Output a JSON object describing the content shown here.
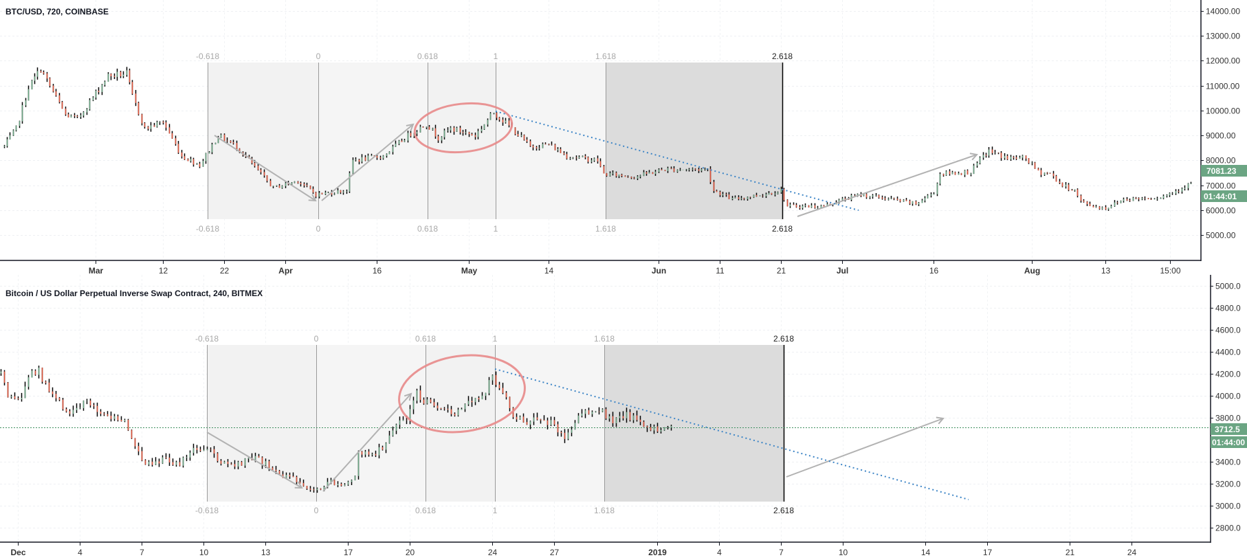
{
  "colors": {
    "up": "#6ba583",
    "down": "#e0553c",
    "wick": "#000000",
    "price_tag": "#6ba583",
    "trendline": "#3d85c6",
    "circle": "#e88a8a",
    "arrow": "#b2b2b2"
  },
  "fib_levels": [
    "-0.618",
    "0",
    "0.618",
    "1",
    "1.618",
    "2.618"
  ],
  "chart_data": [
    {
      "type": "bar",
      "title": "BTC/USD, 720, COINBASE",
      "interval_hours": 12,
      "ylim": [
        4000,
        14500
      ],
      "y_ticks": [
        "14000.00",
        "13000.00",
        "12000.00",
        "11000.00",
        "10000.00",
        "9000.00",
        "8000.00",
        "7000.00",
        "6000.00",
        "5000.00"
      ],
      "x_ticks": [
        {
          "label": "Mar",
          "date": "2018-03-01",
          "major": true
        },
        {
          "label": "12",
          "date": "2018-03-12"
        },
        {
          "label": "22",
          "date": "2018-03-22"
        },
        {
          "label": "Apr",
          "date": "2018-04-01",
          "major": true
        },
        {
          "label": "16",
          "date": "2018-04-16"
        },
        {
          "label": "May",
          "date": "2018-05-01",
          "major": true
        },
        {
          "label": "14",
          "date": "2018-05-14"
        },
        {
          "label": "Jun",
          "date": "2018-06-01",
          "major": true
        },
        {
          "label": "11",
          "date": "2018-06-11"
        },
        {
          "label": "21",
          "date": "2018-06-21"
        },
        {
          "label": "Jul",
          "date": "2018-07-01",
          "major": true
        },
        {
          "label": "16",
          "date": "2018-07-16"
        },
        {
          "label": "Aug",
          "date": "2018-08-01",
          "major": true
        },
        {
          "label": "13",
          "date": "2018-08-13"
        },
        {
          "label": "15:00",
          "date": "2018-08-23T15:00"
        }
      ],
      "last_price": "7081.23",
      "countdown": "01:44:01",
      "price_path": [
        [
          "2018-02-14",
          8560
        ],
        [
          "2018-02-16",
          9280
        ],
        [
          "2018-02-18",
          10940
        ],
        [
          "2018-02-20",
          11680
        ],
        [
          "2018-02-24",
          9830
        ],
        [
          "2018-02-26",
          9660
        ],
        [
          "2018-03-03",
          11400
        ],
        [
          "2018-03-06",
          11490
        ],
        [
          "2018-03-07",
          10580
        ],
        [
          "2018-03-09",
          9280
        ],
        [
          "2018-03-12",
          9560
        ],
        [
          "2018-03-15",
          8180
        ],
        [
          "2018-03-18",
          7820
        ],
        [
          "2018-03-21",
          9000
        ],
        [
          "2018-03-24",
          8560
        ],
        [
          "2018-03-30",
          6900
        ],
        [
          "2018-04-03",
          7180
        ],
        [
          "2018-04-06",
          6630
        ],
        [
          "2018-04-11",
          6800
        ],
        [
          "2018-04-12",
          8000
        ],
        [
          "2018-04-17",
          8180
        ],
        [
          "2018-04-21",
          9000
        ],
        [
          "2018-04-24",
          9470
        ],
        [
          "2018-04-26",
          8920
        ],
        [
          "2018-04-28",
          9280
        ],
        [
          "2018-05-02",
          9000
        ],
        [
          "2018-05-05",
          9940
        ],
        [
          "2018-05-08",
          9280
        ],
        [
          "2018-05-11",
          8560
        ],
        [
          "2018-05-14",
          8640
        ],
        [
          "2018-05-17",
          8180
        ],
        [
          "2018-05-22",
          8000
        ],
        [
          "2018-05-23",
          7460
        ],
        [
          "2018-05-28",
          7350
        ],
        [
          "2018-06-02",
          7640
        ],
        [
          "2018-06-09",
          7640
        ],
        [
          "2018-06-10",
          6800
        ],
        [
          "2018-06-13",
          6440
        ],
        [
          "2018-06-18",
          6630
        ],
        [
          "2018-06-21",
          6800
        ],
        [
          "2018-06-22",
          6160
        ],
        [
          "2018-06-26",
          6160
        ],
        [
          "2018-06-28",
          6160
        ],
        [
          "2018-06-30",
          6350
        ],
        [
          "2018-07-04",
          6630
        ],
        [
          "2018-07-09",
          6440
        ],
        [
          "2018-07-13",
          6250
        ],
        [
          "2018-07-16",
          6720
        ],
        [
          "2018-07-17",
          7460
        ],
        [
          "2018-07-22",
          7540
        ],
        [
          "2018-07-24",
          8180
        ],
        [
          "2018-07-25",
          8370
        ],
        [
          "2018-07-28",
          8090
        ],
        [
          "2018-07-31",
          8090
        ],
        [
          "2018-08-02",
          7540
        ],
        [
          "2018-08-04",
          7460
        ],
        [
          "2018-08-06",
          6990
        ],
        [
          "2018-08-08",
          6800
        ],
        [
          "2018-08-09",
          6350
        ],
        [
          "2018-08-11",
          6160
        ],
        [
          "2018-08-13",
          6080
        ],
        [
          "2018-08-16",
          6440
        ],
        [
          "2018-08-22",
          6520
        ],
        [
          "2018-08-24",
          6720
        ],
        [
          "2018-08-27",
          7081.23
        ]
      ]
    },
    {
      "type": "bar",
      "title": "Bitcoin / US Dollar Perpetual Inverse Swap Contract, 240, BITMEX",
      "interval_hours": 4,
      "ylim": [
        2700,
        5050
      ],
      "y_ticks": [
        "5000.0",
        "4800.0",
        "4600.0",
        "4400.0",
        "4200.0",
        "4000.0",
        "3800.0",
        "3400.0",
        "3200.0",
        "3000.0",
        "2800.0"
      ],
      "x_ticks": [
        {
          "label": "Dec",
          "date": "2018-12-01",
          "major": true
        },
        {
          "label": "4",
          "date": "2018-12-04"
        },
        {
          "label": "7",
          "date": "2018-12-07"
        },
        {
          "label": "10",
          "date": "2018-12-10"
        },
        {
          "label": "13",
          "date": "2018-12-13"
        },
        {
          "label": "17",
          "date": "2018-12-17"
        },
        {
          "label": "20",
          "date": "2018-12-20"
        },
        {
          "label": "24",
          "date": "2018-12-24"
        },
        {
          "label": "27",
          "date": "2018-12-27"
        },
        {
          "label": "2019",
          "date": "2019-01-01",
          "major": true
        },
        {
          "label": "4",
          "date": "2019-01-04"
        },
        {
          "label": "7",
          "date": "2019-01-07"
        },
        {
          "label": "10",
          "date": "2019-01-10"
        },
        {
          "label": "14",
          "date": "2019-01-14"
        },
        {
          "label": "17",
          "date": "2019-01-17"
        },
        {
          "label": "21",
          "date": "2019-01-21"
        },
        {
          "label": "24",
          "date": "2019-01-24"
        }
      ],
      "last_price": "3712.5",
      "countdown": "01:44:00",
      "price_path": [
        [
          "2018-11-30T04:00",
          4206
        ],
        [
          "2018-11-30T12:00",
          3956
        ],
        [
          "2018-12-01T04:00",
          3975
        ],
        [
          "2018-12-01T12:00",
          4181
        ],
        [
          "2018-12-02T00:00",
          4225
        ],
        [
          "2018-12-02T08:00",
          4080
        ],
        [
          "2018-12-03T00:00",
          3931
        ],
        [
          "2018-12-03T12:00",
          3850
        ],
        [
          "2018-12-04T04:00",
          3931
        ],
        [
          "2018-12-04T16:00",
          3894
        ],
        [
          "2018-12-05T12:00",
          3806
        ],
        [
          "2018-12-06T04:00",
          3769
        ],
        [
          "2018-12-06T12:00",
          3600
        ],
        [
          "2018-12-07T04:00",
          3394
        ],
        [
          "2018-12-07T16:00",
          3412
        ],
        [
          "2018-12-08T04:00",
          3431
        ],
        [
          "2018-12-08T20:00",
          3369
        ],
        [
          "2018-12-09T12:00",
          3537
        ],
        [
          "2018-12-10T04:00",
          3519
        ],
        [
          "2018-12-10T20:00",
          3394
        ],
        [
          "2018-12-11T12:00",
          3350
        ],
        [
          "2018-12-12T08:00",
          3431
        ],
        [
          "2018-12-12T20:00",
          3394
        ],
        [
          "2018-12-13T12:00",
          3306
        ],
        [
          "2018-12-14T04:00",
          3244
        ],
        [
          "2018-12-14T20:00",
          3206
        ],
        [
          "2018-12-15T08:00",
          3150
        ],
        [
          "2018-12-16T04:00",
          3225
        ],
        [
          "2018-12-16T20:00",
          3206
        ],
        [
          "2018-12-17T08:00",
          3244
        ],
        [
          "2018-12-17T12:00",
          3475
        ],
        [
          "2018-12-18T08:00",
          3494
        ],
        [
          "2018-12-18T20:00",
          3556
        ],
        [
          "2018-12-19T08:00",
          3769
        ],
        [
          "2018-12-19T20:00",
          3788
        ],
        [
          "2018-12-20T08:00",
          4019
        ],
        [
          "2018-12-20T20:00",
          3931
        ],
        [
          "2018-12-21T12:00",
          3850
        ],
        [
          "2018-12-22T04:00",
          3850
        ],
        [
          "2018-12-22T20:00",
          3975
        ],
        [
          "2018-12-23T12:00",
          3975
        ],
        [
          "2018-12-24T00:00",
          4181
        ],
        [
          "2018-12-24T12:00",
          4056
        ],
        [
          "2018-12-25T00:00",
          3788
        ],
        [
          "2018-12-25T20:00",
          3769
        ],
        [
          "2018-12-26T20:00",
          3769
        ],
        [
          "2018-12-27T12:00",
          3619
        ],
        [
          "2018-12-28T08:00",
          3850
        ],
        [
          "2018-12-29T04:00",
          3894
        ],
        [
          "2018-12-29T20:00",
          3744
        ],
        [
          "2018-12-30T12:00",
          3831
        ],
        [
          "2018-12-31T04:00",
          3769
        ],
        [
          "2018-12-31T20:00",
          3706
        ],
        [
          "2019-01-01T16:00",
          3712.5
        ]
      ]
    }
  ]
}
